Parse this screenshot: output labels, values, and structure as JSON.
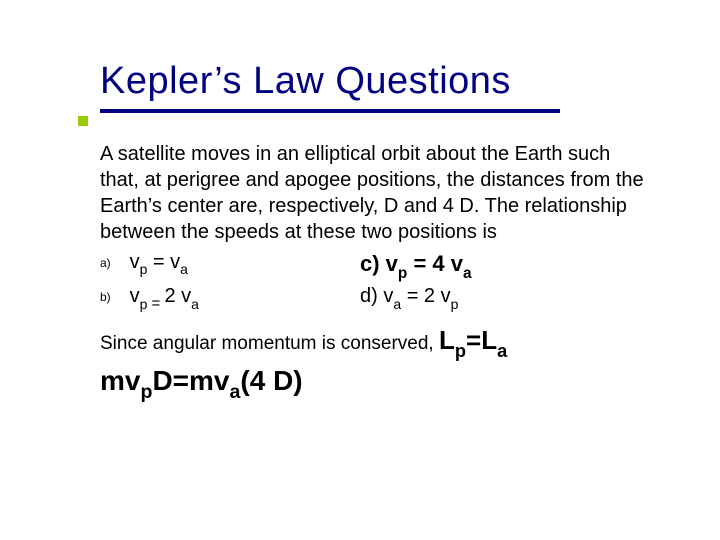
{
  "colors": {
    "title": "#000080",
    "underline": "#000080",
    "accent": "#99cc00",
    "body": "#000000",
    "background": "#ffffff"
  },
  "typography": {
    "title_fontsize_pt": 38,
    "body_fontsize_pt": 20,
    "option_label_fontsize_pt": 12,
    "bigeq_fontsize_pt": 26,
    "final_fontsize_pt": 28,
    "font_family": "Verdana"
  },
  "slide": {
    "title": "Kepler’s Law Questions",
    "intro": "A satellite moves in an elliptical orbit about the Earth such that, at perigree and apogee positions, the distances from the Earth’s center are, respectively, D and 4 D. The relationship between the speeds at these two positions is",
    "options": {
      "a": {
        "label": "a)",
        "lhs": "v",
        "lsub": "p",
        "mid": " = v",
        "rsub": "a",
        "tail": ""
      },
      "b": {
        "label": "b)",
        "lhs": "v",
        "lsub": "p",
        "eqsmall": " = ",
        "mid2": "2 v",
        "rsub": "a",
        "tail": ""
      },
      "c": {
        "prefix": "c) v",
        "psub": "p",
        "mid": " = 4 v",
        "asub": "a"
      },
      "d": {
        "prefix": "d) v",
        "asub": "a",
        "mid": " = 2 v",
        "psub": "p"
      }
    },
    "explain": {
      "lead": "Since angular momentum is conserved, ",
      "eq_L1": "L",
      "eq_sub1": "p",
      "eq_mid": "=L",
      "eq_sub2": "a"
    },
    "final": {
      "t1": "mv",
      "s1": "p",
      "t2": "D=mv",
      "s2": "a",
      "t3": "(4 D)"
    }
  }
}
